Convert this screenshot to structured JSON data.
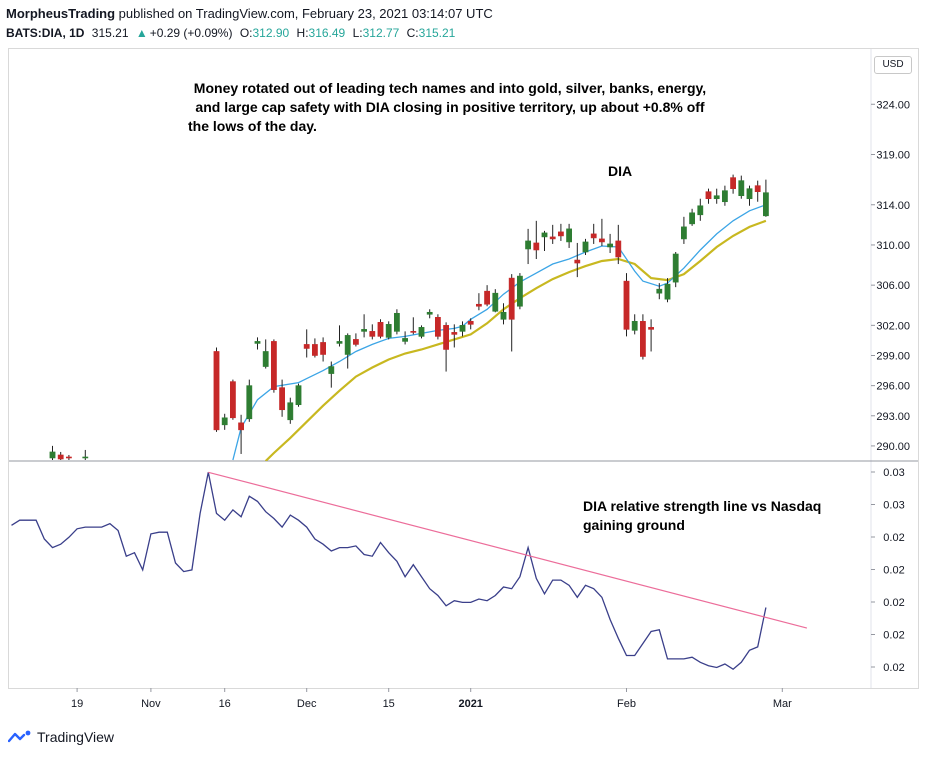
{
  "header": {
    "publisher": "MorpheusTrading",
    "published_text": " published on TradingView.com, February 23, 2021 03:14:07 UTC",
    "symbol": "BATS:DIA, 1D",
    "last": "315.21",
    "change": "+0.29 (+0.09%)",
    "o_label": "O:",
    "o": "312.90",
    "h_label": "H:",
    "h": "316.49",
    "l_label": "L:",
    "l": "312.77",
    "c_label": "C:",
    "c": "315.21"
  },
  "currency_button": "USD",
  "annotations": {
    "main_lines": [
      "Money rotated out of leading tech names and into gold, silver, banks, energy,",
      "and large cap safety with DIA closing in positive territory, up about +0.8% off",
      "the lows of the day."
    ],
    "dia_label": "DIA",
    "rs_lines": [
      "DIA relative strength line vs Nasdaq",
      "gaining ground"
    ]
  },
  "footer": {
    "brand": "TradingView"
  },
  "colors": {
    "up": "#2e7d32",
    "down": "#c62828",
    "ema_fast": "#3ca5e6",
    "ema_slow": "#c8b820",
    "rs_line": "#3a3f8a",
    "trend_line": "#ec6d9a"
  },
  "chart_data": [
    {
      "type": "candlestick",
      "title": "DIA",
      "y_ticks": [
        "324.00",
        "319.00",
        "314.00",
        "310.00",
        "306.00",
        "302.00",
        "299.00",
        "296.00",
        "293.00",
        "290.00"
      ],
      "ylim": [
        288.5,
        329.5
      ],
      "x_ticks": [
        {
          "label": "19",
          "idx": 8
        },
        {
          "label": "Nov",
          "idx": 17
        },
        {
          "label": "16",
          "idx": 26
        },
        {
          "label": "Dec",
          "idx": 36
        },
        {
          "label": "15",
          "idx": 46
        },
        {
          "label": "2021",
          "idx": 56
        },
        {
          "label": "Feb",
          "idx": 75
        },
        {
          "label": "Mar",
          "idx": 94
        }
      ],
      "candles": [
        {
          "i": 5,
          "o": 288.8,
          "h": 290.0,
          "l": 288.6,
          "c": 289.4
        },
        {
          "i": 6,
          "o": 289.1,
          "h": 289.4,
          "l": 288.6,
          "c": 288.7
        },
        {
          "i": 7,
          "o": 288.9,
          "h": 289.1,
          "l": 288.6,
          "c": 288.8
        },
        {
          "i": 9,
          "o": 288.8,
          "h": 289.6,
          "l": 288.6,
          "c": 288.9
        },
        {
          "i": 25,
          "o": 299.4,
          "h": 299.8,
          "l": 291.4,
          "c": 291.6
        },
        {
          "i": 26,
          "o": 292.1,
          "h": 293.2,
          "l": 291.6,
          "c": 292.8
        },
        {
          "i": 27,
          "o": 296.4,
          "h": 296.6,
          "l": 292.6,
          "c": 292.8
        },
        {
          "i": 28,
          "o": 292.3,
          "h": 293.1,
          "l": 289.2,
          "c": 291.6
        },
        {
          "i": 29,
          "o": 292.7,
          "h": 296.6,
          "l": 292.4,
          "c": 296.0
        },
        {
          "i": 30,
          "o": 300.2,
          "h": 300.8,
          "l": 299.6,
          "c": 300.4
        },
        {
          "i": 31,
          "o": 297.9,
          "h": 300.6,
          "l": 297.7,
          "c": 299.4
        },
        {
          "i": 32,
          "o": 300.4,
          "h": 300.6,
          "l": 295.3,
          "c": 295.6
        },
        {
          "i": 33,
          "o": 295.8,
          "h": 296.6,
          "l": 292.9,
          "c": 293.6
        },
        {
          "i": 34,
          "o": 292.6,
          "h": 294.8,
          "l": 292.2,
          "c": 294.3
        },
        {
          "i": 35,
          "o": 294.1,
          "h": 296.2,
          "l": 293.9,
          "c": 296.0
        },
        {
          "i": 36,
          "o": 300.1,
          "h": 301.6,
          "l": 298.8,
          "c": 299.7
        },
        {
          "i": 37,
          "o": 300.1,
          "h": 300.7,
          "l": 298.8,
          "c": 299.0
        },
        {
          "i": 38,
          "o": 300.3,
          "h": 300.8,
          "l": 298.4,
          "c": 299.1
        },
        {
          "i": 39,
          "o": 297.2,
          "h": 298.4,
          "l": 295.8,
          "c": 297.9
        },
        {
          "i": 40,
          "o": 300.2,
          "h": 302.0,
          "l": 299.9,
          "c": 300.4
        },
        {
          "i": 41,
          "o": 299.1,
          "h": 301.2,
          "l": 297.7,
          "c": 301.0
        },
        {
          "i": 42,
          "o": 300.6,
          "h": 301.2,
          "l": 299.9,
          "c": 300.1
        },
        {
          "i": 43,
          "o": 301.4,
          "h": 303.1,
          "l": 300.8,
          "c": 301.6
        },
        {
          "i": 44,
          "o": 301.4,
          "h": 302.1,
          "l": 300.6,
          "c": 300.9
        },
        {
          "i": 45,
          "o": 302.3,
          "h": 302.6,
          "l": 300.7,
          "c": 300.9
        },
        {
          "i": 46,
          "o": 300.8,
          "h": 302.4,
          "l": 300.6,
          "c": 302.1
        },
        {
          "i": 47,
          "o": 301.4,
          "h": 303.6,
          "l": 301.1,
          "c": 303.2
        },
        {
          "i": 48,
          "o": 300.4,
          "h": 301.4,
          "l": 300.1,
          "c": 300.7
        },
        {
          "i": 49,
          "o": 301.4,
          "h": 302.8,
          "l": 301.1,
          "c": 301.3
        },
        {
          "i": 50,
          "o": 300.9,
          "h": 302.0,
          "l": 300.7,
          "c": 301.8
        },
        {
          "i": 51,
          "o": 303.1,
          "h": 303.6,
          "l": 302.7,
          "c": 303.3
        },
        {
          "i": 52,
          "o": 302.8,
          "h": 303.1,
          "l": 300.6,
          "c": 300.9
        },
        {
          "i": 53,
          "o": 302.0,
          "h": 302.3,
          "l": 297.4,
          "c": 299.6
        },
        {
          "i": 54,
          "o": 301.3,
          "h": 302.1,
          "l": 299.8,
          "c": 301.1
        },
        {
          "i": 55,
          "o": 301.4,
          "h": 302.4,
          "l": 300.9,
          "c": 302.0
        },
        {
          "i": 56,
          "o": 302.4,
          "h": 302.7,
          "l": 301.6,
          "c": 302.1
        },
        {
          "i": 57,
          "o": 304.1,
          "h": 305.2,
          "l": 303.5,
          "c": 303.9
        },
        {
          "i": 58,
          "o": 305.4,
          "h": 306.0,
          "l": 303.9,
          "c": 304.1
        },
        {
          "i": 59,
          "o": 303.4,
          "h": 305.6,
          "l": 303.3,
          "c": 305.2
        },
        {
          "i": 60,
          "o": 302.6,
          "h": 304.2,
          "l": 302.1,
          "c": 303.3
        },
        {
          "i": 61,
          "o": 306.7,
          "h": 307.1,
          "l": 299.4,
          "c": 302.6
        },
        {
          "i": 62,
          "o": 303.9,
          "h": 307.2,
          "l": 303.6,
          "c": 306.9
        },
        {
          "i": 63,
          "o": 309.6,
          "h": 311.6,
          "l": 308.1,
          "c": 310.4
        },
        {
          "i": 64,
          "o": 310.2,
          "h": 312.4,
          "l": 308.6,
          "c": 309.5
        },
        {
          "i": 65,
          "o": 310.8,
          "h": 311.4,
          "l": 309.4,
          "c": 311.2
        },
        {
          "i": 66,
          "o": 310.8,
          "h": 312.0,
          "l": 310.1,
          "c": 310.6
        },
        {
          "i": 67,
          "o": 311.3,
          "h": 312.1,
          "l": 310.4,
          "c": 310.9
        },
        {
          "i": 68,
          "o": 310.3,
          "h": 312.1,
          "l": 309.7,
          "c": 311.6
        },
        {
          "i": 69,
          "o": 308.5,
          "h": 310.2,
          "l": 306.8,
          "c": 308.2
        },
        {
          "i": 70,
          "o": 309.3,
          "h": 310.6,
          "l": 309.0,
          "c": 310.3
        },
        {
          "i": 71,
          "o": 311.1,
          "h": 312.1,
          "l": 310.1,
          "c": 310.7
        },
        {
          "i": 72,
          "o": 310.6,
          "h": 312.6,
          "l": 309.9,
          "c": 310.3
        },
        {
          "i": 73,
          "o": 309.8,
          "h": 311.1,
          "l": 309.2,
          "c": 310.1
        },
        {
          "i": 74,
          "o": 310.4,
          "h": 312.0,
          "l": 308.1,
          "c": 308.8
        },
        {
          "i": 75,
          "o": 306.4,
          "h": 307.2,
          "l": 300.9,
          "c": 301.6
        },
        {
          "i": 76,
          "o": 301.5,
          "h": 303.1,
          "l": 301.1,
          "c": 302.4
        },
        {
          "i": 77,
          "o": 302.4,
          "h": 303.1,
          "l": 298.6,
          "c": 298.9
        },
        {
          "i": 78,
          "o": 301.8,
          "h": 302.6,
          "l": 299.4,
          "c": 301.6
        },
        {
          "i": 79,
          "o": 305.2,
          "h": 306.2,
          "l": 304.6,
          "c": 305.6
        },
        {
          "i": 80,
          "o": 304.6,
          "h": 306.7,
          "l": 304.3,
          "c": 306.1
        },
        {
          "i": 81,
          "o": 306.3,
          "h": 309.3,
          "l": 305.8,
          "c": 309.1
        },
        {
          "i": 82,
          "o": 310.6,
          "h": 312.8,
          "l": 310.1,
          "c": 311.8
        },
        {
          "i": 83,
          "o": 312.1,
          "h": 313.6,
          "l": 311.9,
          "c": 313.2
        },
        {
          "i": 84,
          "o": 313.0,
          "h": 314.6,
          "l": 312.4,
          "c": 313.9
        },
        {
          "i": 85,
          "o": 315.3,
          "h": 315.6,
          "l": 314.1,
          "c": 314.6
        },
        {
          "i": 86,
          "o": 314.6,
          "h": 315.6,
          "l": 314.1,
          "c": 314.9
        },
        {
          "i": 87,
          "o": 314.3,
          "h": 315.9,
          "l": 313.9,
          "c": 315.4
        },
        {
          "i": 88,
          "o": 316.7,
          "h": 317.0,
          "l": 315.1,
          "c": 315.6
        },
        {
          "i": 89,
          "o": 314.9,
          "h": 316.9,
          "l": 314.6,
          "c": 316.4
        },
        {
          "i": 90,
          "o": 314.6,
          "h": 315.9,
          "l": 313.9,
          "c": 315.6
        },
        {
          "i": 91,
          "o": 315.9,
          "h": 316.4,
          "l": 314.3,
          "c": 315.3
        },
        {
          "i": 92,
          "o": 312.9,
          "h": 316.5,
          "l": 312.8,
          "c": 315.2
        }
      ],
      "ema_fast": [
        [
          27,
          288.6
        ],
        [
          28,
          291.8
        ],
        [
          30,
          294.6
        ],
        [
          32,
          295.9
        ],
        [
          35,
          296.3
        ],
        [
          36,
          296.7
        ],
        [
          38,
          297.5
        ],
        [
          40,
          298.4
        ],
        [
          42,
          299.4
        ],
        [
          44,
          300.1
        ],
        [
          46,
          300.7
        ],
        [
          48,
          300.9
        ],
        [
          50,
          301.2
        ],
        [
          52,
          301.5
        ],
        [
          54,
          301.7
        ],
        [
          55,
          301.9
        ],
        [
          56,
          302.6
        ],
        [
          58,
          303.6
        ],
        [
          60,
          305.1
        ],
        [
          62,
          306.3
        ],
        [
          64,
          307.2
        ],
        [
          66,
          308.1
        ],
        [
          68,
          308.6
        ],
        [
          70,
          309.3
        ],
        [
          72,
          309.9
        ],
        [
          74,
          309.8
        ],
        [
          75,
          308.6
        ],
        [
          76,
          307.4
        ],
        [
          77,
          306.4
        ],
        [
          79,
          305.9
        ],
        [
          80,
          306.2
        ],
        [
          82,
          307.7
        ],
        [
          84,
          309.5
        ],
        [
          86,
          311.1
        ],
        [
          88,
          312.4
        ],
        [
          90,
          313.4
        ],
        [
          92,
          314.0
        ]
      ],
      "ema_slow": [
        [
          31,
          288.5
        ],
        [
          32,
          289.3
        ],
        [
          34,
          290.8
        ],
        [
          36,
          292.4
        ],
        [
          38,
          294.0
        ],
        [
          40,
          295.5
        ],
        [
          42,
          296.9
        ],
        [
          44,
          297.8
        ],
        [
          46,
          298.6
        ],
        [
          48,
          299.2
        ],
        [
          50,
          299.6
        ],
        [
          52,
          300.1
        ],
        [
          54,
          300.6
        ],
        [
          56,
          301.1
        ],
        [
          58,
          302.2
        ],
        [
          60,
          303.6
        ],
        [
          62,
          304.7
        ],
        [
          64,
          305.7
        ],
        [
          66,
          306.6
        ],
        [
          68,
          307.3
        ],
        [
          70,
          307.9
        ],
        [
          72,
          308.4
        ],
        [
          74,
          308.6
        ],
        [
          76,
          308.1
        ],
        [
          78,
          306.7
        ],
        [
          80,
          306.5
        ],
        [
          82,
          307.1
        ],
        [
          84,
          308.4
        ],
        [
          86,
          309.8
        ],
        [
          88,
          310.9
        ],
        [
          90,
          311.8
        ],
        [
          92,
          312.4
        ]
      ]
    },
    {
      "type": "line",
      "series": [
        {
          "name": "",
          "x": [
            0,
            1,
            2,
            3,
            4,
            5,
            6,
            7,
            8,
            9,
            10,
            11,
            12,
            13,
            14,
            15,
            16,
            17,
            18,
            19,
            20,
            21,
            22,
            23,
            24,
            25,
            26,
            27,
            28,
            29,
            30,
            31,
            32,
            33,
            34,
            35,
            36,
            37,
            38,
            39,
            40,
            41,
            42,
            43,
            44,
            45,
            46,
            47,
            48,
            49,
            50,
            51,
            52,
            53,
            54,
            55,
            56,
            57,
            58,
            59,
            60,
            61,
            62,
            63,
            64,
            65,
            66,
            67,
            68,
            69,
            70,
            71,
            72,
            73,
            74,
            75,
            76,
            77,
            78,
            79,
            80,
            81,
            82,
            83,
            84,
            85,
            86,
            87,
            88,
            89,
            90,
            91,
            92
          ],
          "y": [
            8.9,
            9.2,
            9.2,
            9.2,
            8.1,
            7.6,
            7.8,
            8.2,
            8.7,
            8.8,
            8.8,
            8.8,
            9.0,
            8.6,
            7.1,
            7.3,
            6.3,
            8.4,
            8.5,
            8.5,
            6.7,
            6.2,
            6.3,
            9.6,
            12.0,
            9.6,
            9.2,
            9.8,
            9.4,
            10.6,
            10.3,
            9.7,
            9.3,
            8.8,
            9.5,
            9.2,
            8.8,
            8.1,
            7.8,
            7.4,
            7.6,
            7.6,
            7.7,
            7.2,
            7.1,
            7.9,
            7.3,
            6.8,
            5.9,
            6.6,
            5.9,
            5.2,
            4.8,
            4.2,
            4.5,
            4.4,
            4.4,
            4.6,
            4.5,
            4.8,
            5.3,
            5.2,
            5.9,
            7.6,
            5.8,
            4.9,
            5.7,
            5.7,
            5.4,
            4.7,
            5.4,
            5.2,
            4.7,
            3.4,
            2.3,
            1.3,
            1.3,
            2.0,
            2.7,
            2.8,
            1.1,
            1.1,
            1.1,
            1.2,
            0.9,
            0.7,
            0.6,
            0.8,
            0.5,
            0.9,
            1.6,
            1.8,
            4.1
          ]
        }
      ],
      "trend_line": [
        [
          24,
          12.0
        ],
        [
          97,
          2.9
        ]
      ],
      "y_ticks": [
        "0.03",
        "0.03",
        "0.02",
        "0.02",
        "0.02",
        "0.02",
        "0.02"
      ],
      "ylim": [
        -0.6,
        12.6
      ]
    }
  ]
}
